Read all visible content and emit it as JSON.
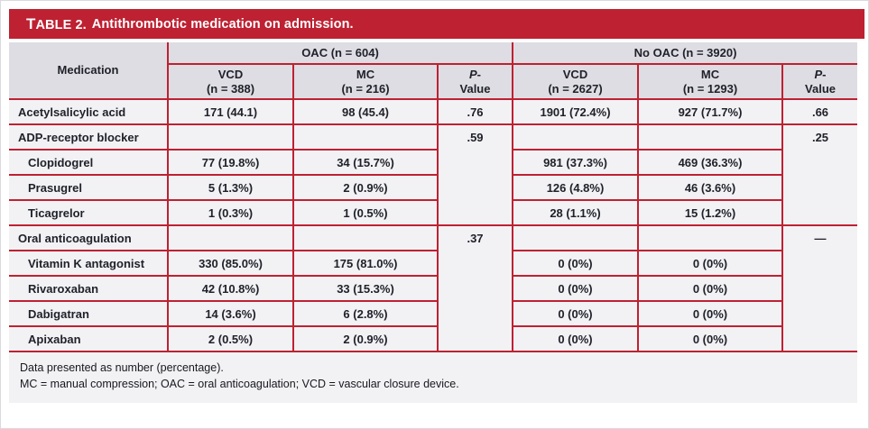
{
  "theme": {
    "accent_red": "#be2132",
    "header_bg": "#dedde3",
    "body_bg": "#f2f2f5",
    "ink": "#20222a"
  },
  "table": {
    "title_label": "TABLE 2.",
    "title_text": "Antithrombotic medication on admission.",
    "group_headers": {
      "oac": "OAC (n = 604)",
      "no_oac": "No OAC (n = 3920)"
    },
    "column_headers": {
      "medication": "Medication",
      "oac_vcd_line1": "VCD",
      "oac_vcd_line2": "(n = 388)",
      "oac_mc_line1": "MC",
      "oac_mc_line2": "(n = 216)",
      "no_oac_vcd_line1": "VCD",
      "no_oac_vcd_line2": "(n = 2627)",
      "no_oac_mc_line1": "MC",
      "no_oac_mc_line2": "(n = 1293)",
      "p_symbol": "P",
      "p_hyphen": "-",
      "p_line2": "Value"
    },
    "rows": [
      {
        "label": "Acetylsalicylic acid",
        "oac_vcd": "171 (44.1)",
        "oac_mc": "98 (45.4)",
        "p_oac": ".76",
        "no_oac_vcd": "1901 (72.4%)",
        "no_oac_mc": "927 (71.7%)",
        "p_no_oac": ".66"
      },
      {
        "label": "ADP-receptor blocker",
        "oac_vcd": "",
        "oac_mc": "",
        "p_oac": ".59",
        "no_oac_vcd": "",
        "no_oac_mc": "",
        "p_no_oac": ".25"
      },
      {
        "label": "Clopidogrel",
        "oac_vcd": "77 (19.8%)",
        "oac_mc": "34 (15.7%)",
        "no_oac_vcd": "981 (37.3%)",
        "no_oac_mc": "469 (36.3%)"
      },
      {
        "label": "Prasugrel",
        "oac_vcd": "5 (1.3%)",
        "oac_mc": "2 (0.9%)",
        "no_oac_vcd": "126 (4.8%)",
        "no_oac_mc": "46 (3.6%)"
      },
      {
        "label": "Ticagrelor",
        "oac_vcd": "1 (0.3%)",
        "oac_mc": "1 (0.5%)",
        "no_oac_vcd": "28 (1.1%)",
        "no_oac_mc": "15 (1.2%)"
      },
      {
        "label": "Oral anticoagulation",
        "oac_vcd": "",
        "oac_mc": "",
        "p_oac": ".37",
        "no_oac_vcd": "",
        "no_oac_mc": "",
        "p_no_oac": "—"
      },
      {
        "label": "Vitamin K antagonist",
        "oac_vcd": "330 (85.0%)",
        "oac_mc": "175 (81.0%)",
        "no_oac_vcd": "0 (0%)",
        "no_oac_mc": "0 (0%)"
      },
      {
        "label": "Rivaroxaban",
        "oac_vcd": "42 (10.8%)",
        "oac_mc": "33 (15.3%)",
        "no_oac_vcd": "0 (0%)",
        "no_oac_mc": "0 (0%)"
      },
      {
        "label": "Dabigatran",
        "oac_vcd": "14 (3.6%)",
        "oac_mc": "6 (2.8%)",
        "no_oac_vcd": "0 (0%)",
        "no_oac_mc": "0 (0%)"
      },
      {
        "label": "Apixaban",
        "oac_vcd": "2 (0.5%)",
        "oac_mc": "2 (0.9%)",
        "no_oac_vcd": "0 (0%)",
        "no_oac_mc": "0 (0%)"
      }
    ]
  },
  "footnotes": {
    "line1": "Data presented as number (percentage).",
    "line2": "MC = manual compression; OAC = oral anticoagulation; VCD = vascular closure device."
  }
}
